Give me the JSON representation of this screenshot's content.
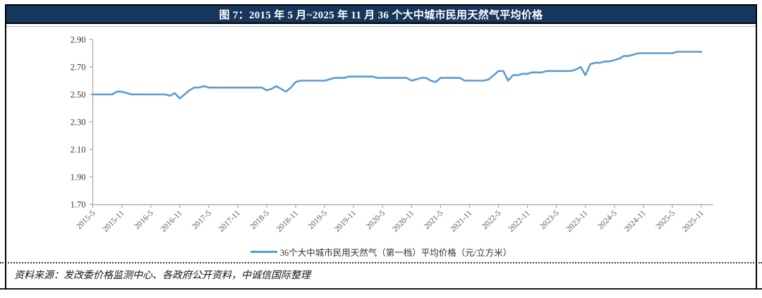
{
  "figure": {
    "title": "图 7：2015 年 5 月~2025 年 11 月 36 个大中城市民用天然气平均价格",
    "source_note": "资料来源：发改委价格监测中心、各政府公开资料，中诚信国际整理"
  },
  "colors": {
    "title_bar": "#17365d",
    "line": "#5b9bd5",
    "axis": "#a6a6a6",
    "x_tick_label": "#595959",
    "y_tick_label": "#3b3b3b",
    "legend_text": "#333333"
  },
  "chart_data": {
    "type": "line",
    "title": "图 7：2015 年 5 月~2025 年 11 月 36 个大中城市民用天然气平均价格",
    "legend_label": "36个大中城市民用天然气（第一档）平均价格（元/立方米）",
    "legend_position": "bottom",
    "xlabel": "",
    "ylabel": "",
    "grid": false,
    "ylim": [
      1.7,
      2.9
    ],
    "yticks": [
      1.7,
      1.9,
      2.1,
      2.3,
      2.5,
      2.7,
      2.9
    ],
    "x_tick_labels": [
      "2015-5",
      "2015-11",
      "2016-5",
      "2016-11",
      "2017-5",
      "2017-11",
      "2018-5",
      "2018-11",
      "2019-5",
      "2019-11",
      "2020-5",
      "2020-11",
      "2021-5",
      "2021-11",
      "2022-5",
      "2022-11",
      "2023-5",
      "2023-11",
      "2024-5",
      "2024-11",
      "2025-5",
      "2025-11"
    ],
    "x_tick_every_n_points": 6,
    "series": [
      {
        "name": "36个大中城市民用天然气（第一档）平均价格（元/立方米）",
        "frequency": "monthly",
        "x_start": "2015-5",
        "x_end": "2025-11",
        "values": [
          2.5,
          2.5,
          2.5,
          2.5,
          2.5,
          2.52,
          2.52,
          2.51,
          2.5,
          2.5,
          2.5,
          2.5,
          2.5,
          2.5,
          2.5,
          2.5,
          2.49,
          2.51,
          2.47,
          2.5,
          2.53,
          2.55,
          2.55,
          2.56,
          2.55,
          2.55,
          2.55,
          2.55,
          2.55,
          2.55,
          2.55,
          2.55,
          2.55,
          2.55,
          2.55,
          2.55,
          2.53,
          2.54,
          2.56,
          2.54,
          2.52,
          2.55,
          2.59,
          2.6,
          2.6,
          2.6,
          2.6,
          2.6,
          2.6,
          2.61,
          2.62,
          2.62,
          2.62,
          2.63,
          2.63,
          2.63,
          2.63,
          2.63,
          2.63,
          2.62,
          2.62,
          2.62,
          2.62,
          2.62,
          2.62,
          2.62,
          2.6,
          2.61,
          2.62,
          2.62,
          2.6,
          2.59,
          2.62,
          2.62,
          2.62,
          2.62,
          2.62,
          2.6,
          2.6,
          2.6,
          2.6,
          2.6,
          2.61,
          2.64,
          2.67,
          2.67,
          2.6,
          2.64,
          2.64,
          2.65,
          2.65,
          2.66,
          2.66,
          2.66,
          2.67,
          2.67,
          2.67,
          2.67,
          2.67,
          2.67,
          2.68,
          2.7,
          2.64,
          2.72,
          2.73,
          2.73,
          2.74,
          2.74,
          2.75,
          2.76,
          2.78,
          2.78,
          2.79,
          2.8,
          2.8,
          2.8,
          2.8,
          2.8,
          2.8,
          2.8,
          2.8,
          2.81,
          2.81,
          2.81,
          2.81,
          2.81,
          2.81
        ]
      }
    ]
  }
}
